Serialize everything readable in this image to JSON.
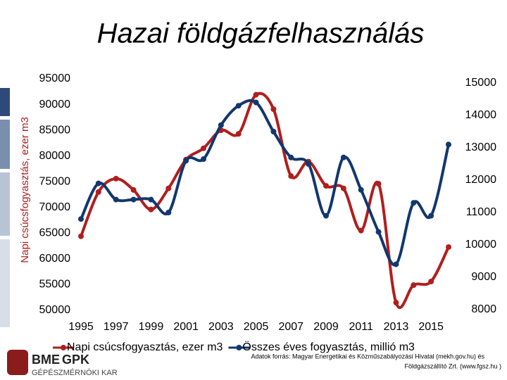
{
  "chart_data": {
    "type": "line",
    "title": "Hazai földgázfelhasználás",
    "ylabel": "Napi csúcsfogyasztás, ezer m3",
    "x": [
      1995,
      1996,
      1997,
      1998,
      1999,
      2000,
      2001,
      2002,
      2003,
      2004,
      2005,
      2006,
      2007,
      2008,
      2009,
      2010,
      2011,
      2012,
      2013,
      2014,
      2015,
      2016
    ],
    "xlim": [
      1995,
      2016
    ],
    "xticks": [
      1995,
      1997,
      1999,
      2001,
      2003,
      2005,
      2007,
      2009,
      2011,
      2013,
      2015
    ],
    "ylim": [
      50000,
      95000
    ],
    "yticks": [
      50000,
      55000,
      60000,
      65000,
      70000,
      75000,
      80000,
      85000,
      90000,
      95000
    ],
    "y2lim": [
      8000,
      15000
    ],
    "y2ticks": [
      8000,
      9000,
      10000,
      11000,
      12000,
      13000,
      14000,
      15000
    ],
    "series": [
      {
        "name": "Napi csúcsfogyasztás, ezer m3",
        "color": "#b01e1e",
        "values": [
          64400,
          73000,
          75600,
          73400,
          69600,
          73700,
          79300,
          81500,
          85000,
          84300,
          91900,
          89100,
          76100,
          78900,
          74200,
          73700,
          65500,
          74600,
          51500,
          54900,
          55600,
          62300
        ]
      },
      {
        "name": "Összes éves fogyasztás, millió m3",
        "color": "#12376e",
        "axis": "y2",
        "values": [
          10800,
          11900,
          11400,
          11400,
          11400,
          11000,
          12600,
          12650,
          13700,
          14300,
          14400,
          13500,
          12700,
          12500,
          10900,
          12700,
          11700,
          10400,
          9400,
          11300,
          10900,
          13100
        ]
      }
    ],
    "legend": "bottom"
  },
  "footer": {
    "source_line1": "Adatok forrás: Magyar Energetikai és Közműszabályozási Hivatal (mekh.gov.hu) és",
    "source_line2": "Földgázszállító Zrt. (www.fgsz.hu )",
    "logo_a": "BME",
    "logo_b": "GPK",
    "faculty": "GÉPÉSZMÉRNÖKI KAR"
  }
}
